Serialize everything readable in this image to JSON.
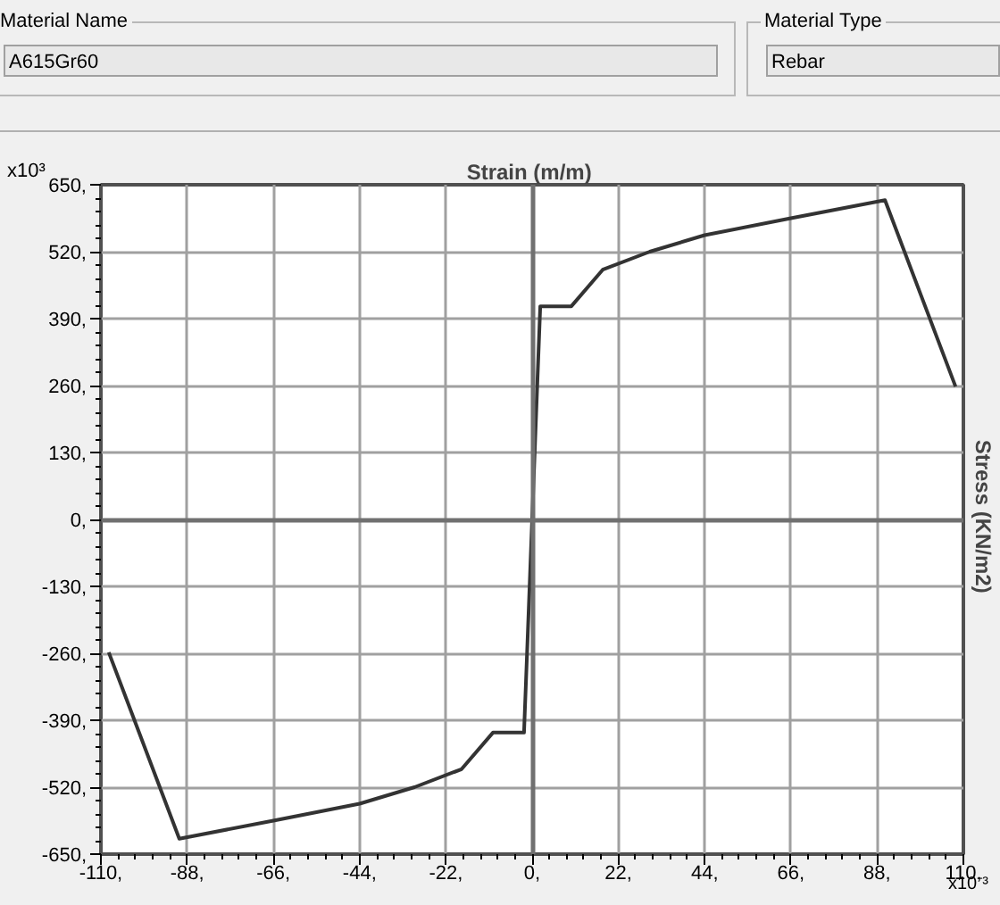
{
  "chart_data": {
    "type": "line",
    "xlabel": "Strain  (m/m)",
    "ylabel": "Stress  (KN/m2)",
    "annotations": [
      "Material Name",
      "A615Gr60",
      "Material Type",
      "Rebar",
      "x10³",
      "x10⁻³"
    ],
    "x": [
      -108,
      -90,
      -66,
      -44,
      -30,
      -18,
      -10,
      -2.07,
      0,
      2.07,
      10,
      18,
      30,
      44,
      66,
      90,
      108
    ],
    "series": [
      {
        "color": "#333333",
        "values": [
          -258,
          -620,
          -585,
          -552,
          -520,
          -485,
          -414,
          -414,
          0,
          414,
          414,
          485,
          520,
          552,
          585,
          620,
          258
        ]
      }
    ],
    "xlim": [
      -110,
      110
    ],
    "xticks": [
      {
        "value": -110,
        "label": "-110,"
      },
      {
        "value": -88,
        "label": "-88,"
      },
      {
        "value": -66,
        "label": "-66,"
      },
      {
        "value": -44,
        "label": "-44,"
      },
      {
        "value": -22,
        "label": "-22,"
      },
      {
        "value": 0,
        "label": "0,"
      },
      {
        "value": 22,
        "label": "22,"
      },
      {
        "value": 44,
        "label": "44,"
      },
      {
        "value": 66,
        "label": "66,"
      },
      {
        "value": 88,
        "label": "88,"
      },
      {
        "value": 110,
        "label": "110,"
      }
    ],
    "ylim": [
      -650,
      650
    ],
    "yticks": [
      {
        "value": -650,
        "label": "-650,"
      },
      {
        "value": -520,
        "label": "-520,"
      },
      {
        "value": -390,
        "label": "-390,"
      },
      {
        "value": -260,
        "label": "-260,"
      },
      {
        "value": -130,
        "label": "-130,"
      },
      {
        "value": 0,
        "label": "0,"
      },
      {
        "value": 130,
        "label": "130,"
      },
      {
        "value": 260,
        "label": "260,"
      },
      {
        "value": 390,
        "label": "390,"
      },
      {
        "value": 520,
        "label": "520,"
      },
      {
        "value": 650,
        "label": "650,"
      }
    ],
    "grid": true,
    "marker": "none",
    "line_style": "solid"
  }
}
